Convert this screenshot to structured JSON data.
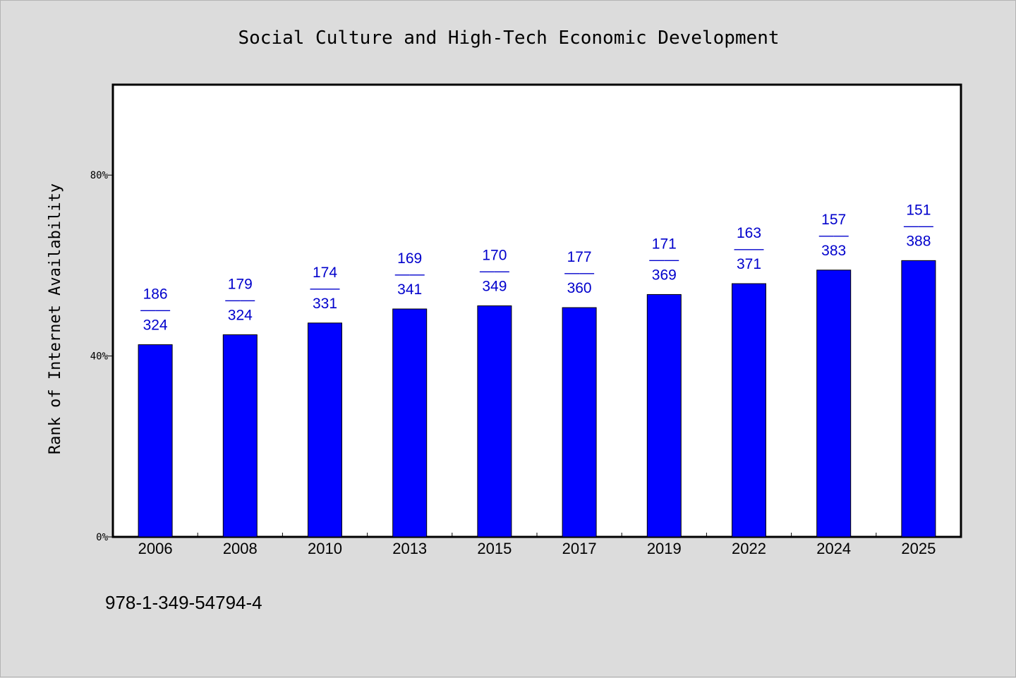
{
  "chart_data": {
    "type": "bar",
    "title": "Social Culture and High-Tech Economic Development",
    "xlabel": "",
    "ylabel": "Rank of Internet Availability",
    "ylim": [
      0,
      100
    ],
    "yticks": [
      0,
      40,
      80
    ],
    "ytick_labels": [
      "0%",
      "40%",
      "80%"
    ],
    "categories": [
      "2006",
      "2008",
      "2010",
      "2013",
      "2015",
      "2017",
      "2019",
      "2022",
      "2024",
      "2025"
    ],
    "values": [
      42.5,
      44.7,
      47.3,
      50.4,
      51.1,
      50.7,
      53.6,
      56.0,
      59.0,
      61.1
    ],
    "label_top": [
      "186",
      "179",
      "174",
      "169",
      "170",
      "177",
      "171",
      "163",
      "157",
      "151"
    ],
    "label_separator": "——",
    "label_bottom": [
      "324",
      "324",
      "331",
      "341",
      "349",
      "360",
      "369",
      "371",
      "383",
      "388"
    ],
    "grid": false,
    "bar_color": "#0000ff",
    "label_color": "#0000cc"
  },
  "footer": {
    "code": "978-1-349-54794-4"
  }
}
